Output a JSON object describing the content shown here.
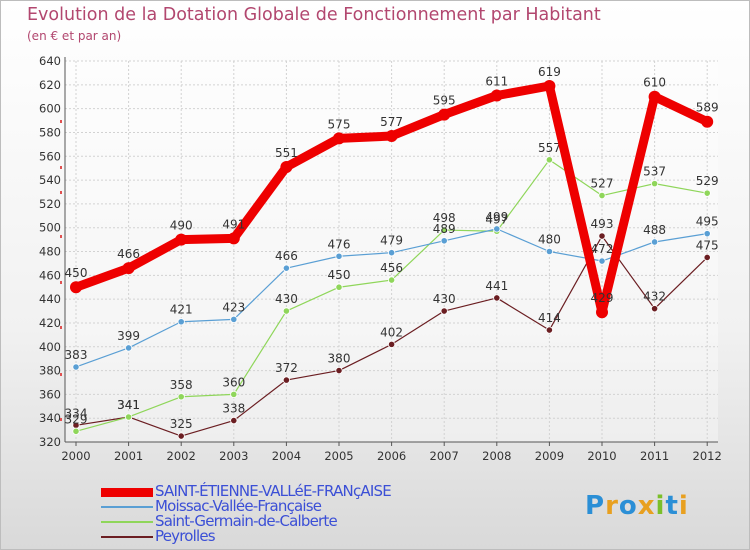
{
  "header": {
    "title": "Evolution de la Dotation Globale de Fonctionnement par Habitant",
    "subtitle": "(en € et par an)"
  },
  "logo": {
    "letters": [
      "P",
      "r",
      "o",
      "x",
      "i",
      "t",
      "i"
    ],
    "colors": [
      "#2b8fd6",
      "#e8a020",
      "#2b8fd6",
      "#e8a020",
      "#7bbf2a",
      "#2b8fd6",
      "#e8a020"
    ]
  },
  "chart_data": {
    "type": "line",
    "title": "Evolution de la Dotation Globale de Fonctionnement par Habitant",
    "subtitle": "(en € et par an)",
    "xlabel": "",
    "ylabel": "",
    "ylim": [
      320,
      640
    ],
    "y_ticks": [
      320,
      340,
      360,
      380,
      400,
      420,
      440,
      460,
      480,
      500,
      520,
      540,
      560,
      580,
      600,
      620,
      640
    ],
    "grid": true,
    "legend_position": "bottom-left",
    "categories": [
      "2000",
      "2001",
      "2002",
      "2003",
      "2004",
      "2005",
      "2006",
      "2007",
      "2008",
      "2009",
      "2010",
      "2011",
      "2012"
    ],
    "series": [
      {
        "name": "Peyrolles",
        "color": "#6b1e22",
        "width": 1.2,
        "values": [
          334,
          341,
          325,
          338,
          372,
          380,
          402,
          430,
          441,
          414,
          493,
          432,
          475
        ]
      },
      {
        "name": "Saint-Germain-de-Calberte",
        "color": "#8fd65a",
        "width": 1.2,
        "values": [
          329,
          341,
          358,
          360,
          430,
          450,
          456,
          498,
          497,
          557,
          527,
          537,
          529
        ]
      },
      {
        "name": "Moissac-Vallée-Française",
        "color": "#5a9fd4",
        "width": 1.2,
        "values": [
          383,
          399,
          421,
          423,
          466,
          476,
          479,
          489,
          499,
          480,
          472,
          488,
          495
        ]
      },
      {
        "name": "SAINT-ÉTIENNE-VALLéE-FRANçAISE",
        "color": "#ee0000",
        "width": 9,
        "values": [
          450,
          466,
          490,
          491,
          551,
          575,
          577,
          595,
          611,
          619,
          429,
          610,
          589
        ]
      }
    ]
  }
}
